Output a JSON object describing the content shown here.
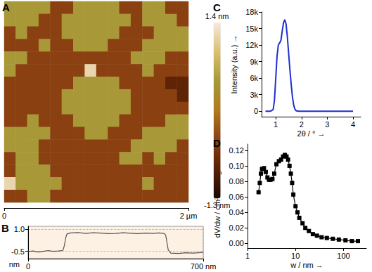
{
  "chart_data": [
    {
      "type": "heatmap",
      "title": "A",
      "cells": [
        [
          0.5,
          0.5,
          0.5,
          0.5,
          -0.4,
          -0.4,
          0.5,
          0.5,
          0.5,
          0.5,
          -0.4,
          -0.4,
          0.5,
          0.5,
          -0.4,
          -0.4
        ],
        [
          0.5,
          0.5,
          0.5,
          -0.4,
          -0.4,
          0.5,
          0.5,
          0.5,
          0.5,
          0.5,
          0.5,
          -0.4,
          0.5,
          0.5,
          0.5,
          -0.4
        ],
        [
          -0.4,
          0.5,
          -0.4,
          -0.4,
          -0.4,
          0.5,
          0.5,
          0.5,
          0.5,
          0.5,
          -0.4,
          -0.4,
          -0.4,
          0.5,
          0.5,
          0.5
        ],
        [
          -0.4,
          -0.4,
          -0.4,
          0.5,
          -0.4,
          -0.4,
          0.5,
          0.5,
          0.5,
          -0.4,
          -0.4,
          -0.4,
          0.5,
          0.5,
          0.5,
          0.5
        ],
        [
          0.5,
          0.5,
          -0.4,
          -0.4,
          -0.4,
          -0.4,
          -0.4,
          -0.4,
          -0.4,
          -0.4,
          -0.4,
          0.5,
          0.5,
          0.5,
          -0.4,
          -0.4
        ],
        [
          0.5,
          -0.4,
          -0.4,
          -0.4,
          -0.4,
          -0.4,
          -0.4,
          1.2,
          -0.4,
          -0.4,
          -0.4,
          -0.4,
          0.5,
          -0.4,
          -0.4,
          -0.4
        ],
        [
          -0.4,
          -0.4,
          -0.4,
          -0.4,
          -0.4,
          -0.4,
          0.5,
          0.5,
          0.5,
          0.5,
          -0.4,
          -0.4,
          -0.4,
          -0.4,
          -0.8,
          -0.8
        ],
        [
          -0.4,
          -0.4,
          -0.4,
          -0.4,
          -0.4,
          0.5,
          0.5,
          0.5,
          0.5,
          0.5,
          0.5,
          -0.4,
          -0.4,
          -0.4,
          -0.4,
          -0.8
        ],
        [
          -0.4,
          -0.4,
          -0.4,
          -0.4,
          -0.4,
          0.5,
          0.5,
          0.5,
          0.5,
          0.5,
          0.5,
          -0.4,
          -0.4,
          -0.4,
          -0.4,
          -0.4
        ],
        [
          -0.4,
          -0.4,
          0.5,
          -0.4,
          -0.4,
          -0.4,
          0.5,
          0.5,
          0.5,
          0.5,
          -0.4,
          -0.4,
          -0.4,
          -0.4,
          0.5,
          0.5
        ],
        [
          0.5,
          0.5,
          0.5,
          0.5,
          -0.4,
          -0.4,
          -0.4,
          0.5,
          0.5,
          -0.4,
          -0.4,
          -0.4,
          0.5,
          0.5,
          0.5,
          0.5
        ],
        [
          0.5,
          0.5,
          0.5,
          -0.4,
          -0.4,
          -0.4,
          -0.4,
          -0.4,
          -0.4,
          -0.4,
          -0.4,
          0.5,
          0.5,
          0.5,
          0.5,
          -0.4
        ],
        [
          -0.4,
          0.5,
          0.5,
          -0.4,
          -0.4,
          -0.4,
          -0.4,
          -0.4,
          -0.4,
          -0.4,
          0.5,
          0.5,
          -0.4,
          0.5,
          -0.4,
          -0.4
        ],
        [
          -0.4,
          0.5,
          0.5,
          0.5,
          -0.4,
          -0.4,
          -0.4,
          -0.4,
          -0.4,
          -0.4,
          -0.4,
          -0.4,
          -0.4,
          -0.4,
          -0.4,
          -0.4
        ],
        [
          1.2,
          0.5,
          0.5,
          0.5,
          0.5,
          -0.4,
          -0.4,
          -0.4,
          -0.4,
          -0.4,
          -0.4,
          -0.4,
          0.5,
          -0.4,
          -0.4,
          -0.4
        ],
        [
          -0.4,
          -0.4,
          0.5,
          0.5,
          -0.4,
          -0.4,
          -0.4,
          -0.4,
          -0.4,
          -0.4,
          -0.4,
          -0.4,
          -0.4,
          -0.4,
          -0.4,
          -0.4
        ]
      ],
      "xlim": [
        0,
        2
      ],
      "xticks": [
        0,
        {
          "value": 2,
          "label": "2 µm"
        }
      ],
      "tick_labels": "x",
      "colorbar": {
        "range": [
          -1.3,
          1.4
        ],
        "ticks": [
          {
            "value": 1.4,
            "label": "1.4 nm"
          },
          {
            "value": -1.3,
            "label": "-1.3 nm"
          }
        ]
      }
    },
    {
      "type": "line",
      "title": "B",
      "x": [
        0,
        20,
        40,
        60,
        80,
        100,
        120,
        135,
        140,
        145,
        150,
        155,
        170,
        200,
        230,
        260,
        290,
        320,
        350,
        380,
        410,
        440,
        470,
        500,
        520,
        535,
        545,
        550,
        555,
        560,
        570,
        600,
        630,
        660,
        700
      ],
      "values": [
        -0.52,
        -0.48,
        -0.55,
        -0.5,
        -0.45,
        -0.5,
        -0.48,
        -0.46,
        -0.4,
        -0.1,
        0.4,
        0.68,
        0.75,
        0.78,
        0.72,
        0.76,
        0.74,
        0.7,
        0.72,
        0.76,
        0.73,
        0.7,
        0.74,
        0.72,
        0.75,
        0.73,
        0.7,
        0.6,
        0.1,
        -0.4,
        -0.62,
        -0.65,
        -0.6,
        -0.62,
        -0.58
      ],
      "xlim": [
        0,
        700
      ],
      "xticks": [
        0,
        {
          "value": 700,
          "label": "700 nm"
        }
      ],
      "ylim": [
        -1,
        1.2
      ],
      "yticks": [
        {
          "value": 1,
          "label": "1.0"
        },
        -0.5
      ],
      "ylabel": "nm",
      "grid": true,
      "color": "#555555",
      "marker": "none"
    },
    {
      "type": "line",
      "title": "C",
      "x": [
        0.6,
        0.8,
        0.9,
        0.95,
        1.0,
        1.05,
        1.1,
        1.15,
        1.2,
        1.25,
        1.3,
        1.35,
        1.4,
        1.45,
        1.5,
        1.55,
        1.6,
        1.65,
        1.7,
        1.75,
        1.8,
        1.9,
        2.5,
        3.0,
        3.5,
        4.0
      ],
      "values": [
        0,
        0,
        300,
        2000,
        6000,
        10000,
        12000,
        12400,
        12800,
        14500,
        16000,
        16600,
        15800,
        13500,
        10500,
        7500,
        4800,
        2500,
        1000,
        300,
        50,
        0,
        0,
        0,
        0,
        0
      ],
      "xlim": [
        0.45,
        4.3
      ],
      "xticks": [
        1,
        2,
        3,
        4
      ],
      "ylim": [
        -1000,
        18000
      ],
      "yticks": [
        0,
        {
          "value": 3000,
          "label": "3k"
        },
        {
          "value": 6000,
          "label": "6k"
        },
        {
          "value": 9000,
          "label": "9k"
        },
        {
          "value": 12000,
          "label": "12k"
        },
        {
          "value": 15000,
          "label": "15k"
        },
        {
          "value": 18000,
          "label": "18k"
        }
      ],
      "xlabel": "2θ / ° →",
      "ylabel": "Intensity (a.u.) →",
      "color": "#1f2fd0",
      "marker": "none"
    },
    {
      "type": "line",
      "title": "D",
      "x": [
        1.7,
        1.8,
        1.9,
        2.0,
        2.2,
        2.4,
        2.6,
        2.8,
        3.0,
        3.3,
        3.6,
        4.0,
        4.5,
        5.0,
        5.5,
        6.0,
        6.5,
        7.0,
        7.5,
        8.0,
        8.5,
        9,
        10,
        11,
        12,
        14,
        16,
        19,
        23,
        28,
        35,
        45,
        60,
        80,
        110,
        150,
        200
      ],
      "values": [
        0.066,
        0.078,
        0.09,
        0.096,
        0.097,
        0.092,
        0.085,
        0.082,
        0.082,
        0.083,
        0.09,
        0.102,
        0.106,
        0.108,
        0.112,
        0.114,
        0.112,
        0.108,
        0.1,
        0.09,
        0.078,
        0.063,
        0.048,
        0.04,
        0.033,
        0.026,
        0.02,
        0.016,
        0.012,
        0.01,
        0.008,
        0.007,
        0.006,
        0.005,
        0.004,
        0.003,
        0.003
      ],
      "log": "x",
      "xlim": [
        1,
        300
      ],
      "xticks": [
        1,
        10,
        100
      ],
      "ylim": [
        -0.006,
        0.128
      ],
      "yticks": [
        {
          "value": 0,
          "label": "0.00"
        },
        {
          "value": 0.02,
          "label": "0.02"
        },
        {
          "value": 0.04,
          "label": "0.04"
        },
        {
          "value": 0.06,
          "label": "0.06"
        },
        {
          "value": 0.08,
          "label": "0.08"
        },
        {
          "value": 0.1,
          "label": "0.10"
        },
        {
          "value": 0.12,
          "label": "0.12"
        }
      ],
      "xlabel": "w / nm →",
      "ylabel": "dV/dw / cm³ nm⁻¹ g⁻¹ →",
      "color": "#000000",
      "marker": "square"
    }
  ]
}
